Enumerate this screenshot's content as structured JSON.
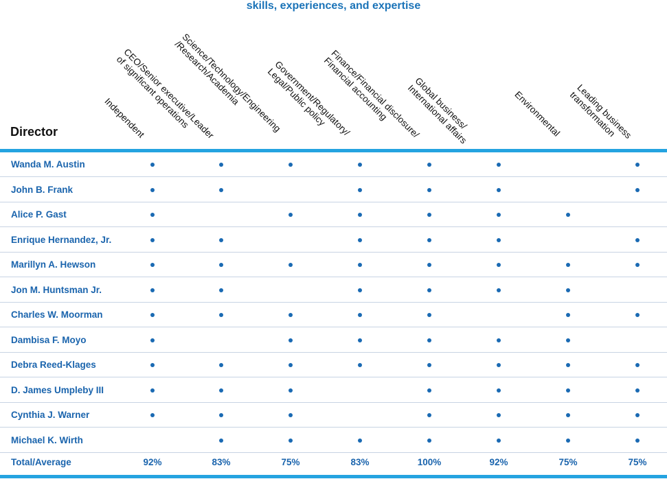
{
  "title": "skills, experiences, and expertise",
  "director_header": "Director",
  "columns": [
    [
      "Independent"
    ],
    [
      "CEO/Senior executive/Leader",
      "of significant operations"
    ],
    [
      "Science/Technology/Engineering",
      "/Research/Academia"
    ],
    [
      "Government/Regulatory/",
      "Legal/Public policy"
    ],
    [
      "Finance/Financial disclosure/",
      "Financial accounting"
    ],
    [
      "Global business/",
      "International affairs"
    ],
    [
      "Environmental"
    ],
    [
      "Leading business",
      "transformation"
    ]
  ],
  "directors": [
    {
      "name": "Wanda M. Austin",
      "marks": [
        1,
        1,
        1,
        1,
        1,
        1,
        0,
        1
      ]
    },
    {
      "name": "John B. Frank",
      "marks": [
        1,
        1,
        0,
        1,
        1,
        1,
        0,
        1
      ]
    },
    {
      "name": "Alice P. Gast",
      "marks": [
        1,
        0,
        1,
        1,
        1,
        1,
        1,
        0
      ]
    },
    {
      "name": "Enrique Hernandez, Jr.",
      "marks": [
        1,
        1,
        0,
        1,
        1,
        1,
        0,
        1
      ]
    },
    {
      "name": "Marillyn A. Hewson",
      "marks": [
        1,
        1,
        1,
        1,
        1,
        1,
        1,
        1
      ]
    },
    {
      "name": "Jon M. Huntsman Jr.",
      "marks": [
        1,
        1,
        0,
        1,
        1,
        1,
        1,
        0
      ]
    },
    {
      "name": "Charles W. Moorman",
      "marks": [
        1,
        1,
        1,
        1,
        1,
        0,
        1,
        1
      ]
    },
    {
      "name": "Dambisa F. Moyo",
      "marks": [
        1,
        0,
        1,
        1,
        1,
        1,
        1,
        0
      ]
    },
    {
      "name": "Debra Reed-Klages",
      "marks": [
        1,
        1,
        1,
        1,
        1,
        1,
        1,
        1
      ]
    },
    {
      "name": "D. James Umpleby III",
      "marks": [
        1,
        1,
        1,
        0,
        1,
        1,
        1,
        1
      ]
    },
    {
      "name": "Cynthia J. Warner",
      "marks": [
        1,
        1,
        1,
        0,
        1,
        1,
        1,
        1
      ]
    },
    {
      "name": "Michael K. Wirth",
      "marks": [
        0,
        1,
        1,
        1,
        1,
        1,
        1,
        1
      ]
    }
  ],
  "total": {
    "label": "Total/Average",
    "values": [
      "92%",
      "83%",
      "75%",
      "83%",
      "100%",
      "92%",
      "75%",
      "75%"
    ]
  },
  "colors": {
    "accent_rule": "#24a3e0",
    "text_blue": "#1a64ad",
    "dot": "#1a6ab3"
  }
}
